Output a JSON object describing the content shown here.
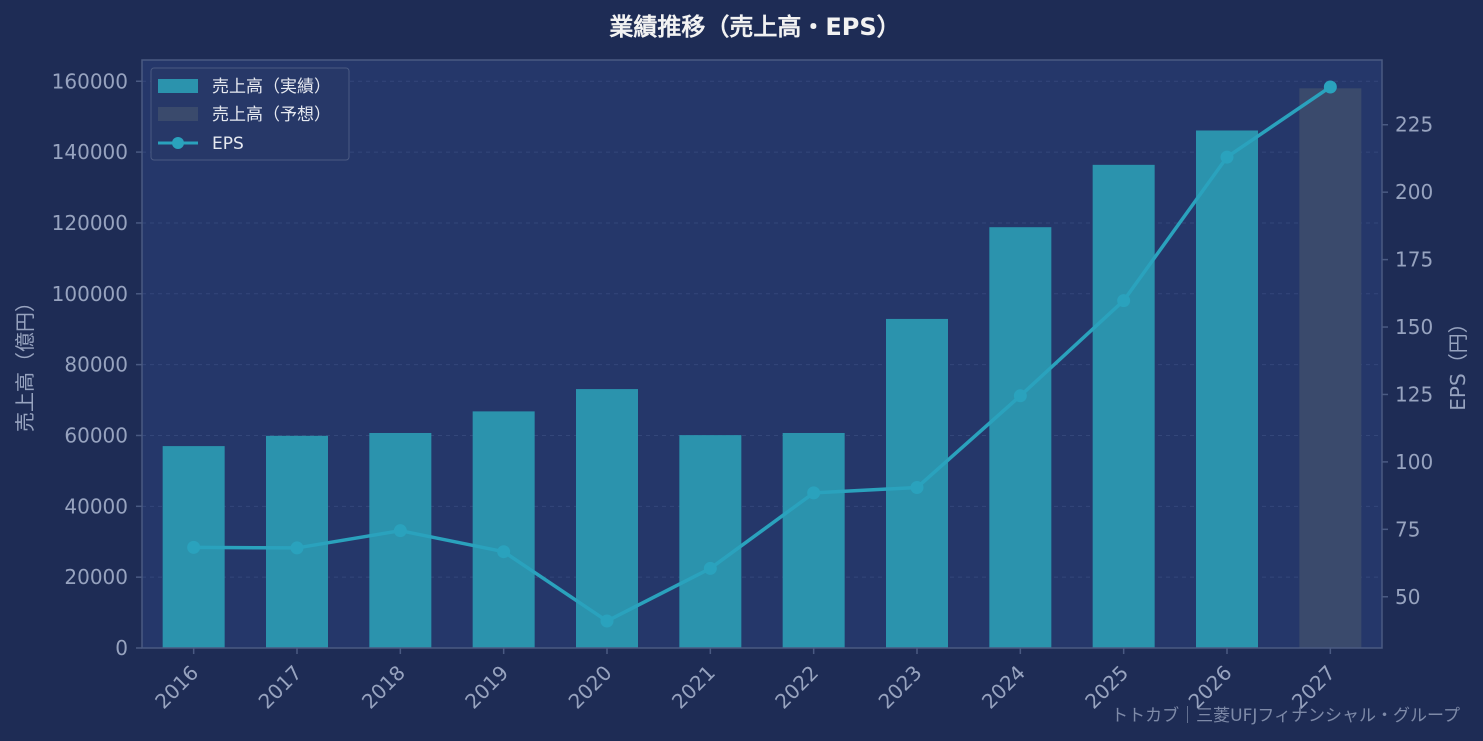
{
  "chart_data": {
    "type": "bar",
    "title": "業績推移（売上高・EPS）",
    "categories": [
      "2016",
      "2017",
      "2018",
      "2019",
      "2020",
      "2021",
      "2022",
      "2023",
      "2024",
      "2025",
      "2026",
      "2027"
    ],
    "series": [
      {
        "name": "売上高（実績）",
        "type": "bar",
        "axis": "left",
        "values": [
          57000,
          59900,
          60700,
          66800,
          73100,
          60100,
          60700,
          92900,
          118800,
          136400,
          146100,
          null
        ]
      },
      {
        "name": "売上高（予想）",
        "type": "bar",
        "axis": "left",
        "values": [
          null,
          null,
          null,
          null,
          null,
          null,
          null,
          null,
          null,
          null,
          null,
          158000
        ]
      },
      {
        "name": "EPS",
        "type": "line",
        "axis": "right",
        "values": [
          68.3,
          68.1,
          74.5,
          66.7,
          41.0,
          60.5,
          88.5,
          90.5,
          124.5,
          159.8,
          213.0,
          239.0
        ]
      }
    ],
    "ylabel_left": "売上高（億円）",
    "ylabel_right": "EPS（円）",
    "ylim_left": [
      0,
      166000
    ],
    "ylim_right": [
      31,
      249
    ],
    "yticks_left": [
      0,
      20000,
      40000,
      60000,
      80000,
      100000,
      120000,
      140000,
      160000
    ],
    "yticks_right": [
      50,
      75,
      100,
      125,
      150,
      175,
      200,
      225
    ],
    "grid": true,
    "legend": "top-left",
    "watermark": "トトカブ｜三菱UFJフィナンシャル・グループ",
    "colors": {
      "background": "#1e2c55",
      "plot_background": "#25376a",
      "actual_bar": "#2b93ad",
      "forecast_bar": "#3a4a6c",
      "eps_line": "#2aa2bd",
      "axis": "#4a5a82"
    }
  }
}
